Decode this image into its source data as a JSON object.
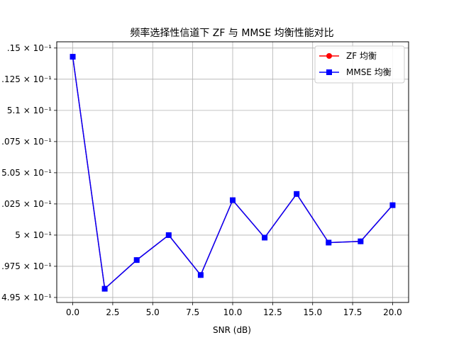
{
  "chart_data": {
    "type": "line",
    "title": "频率选择性信道下 ZF 与 MMSE 均衡性能对比",
    "xlabel": "SNR (dB)",
    "ylabel": "",
    "x": [
      0,
      2,
      4,
      6,
      8,
      10,
      12,
      14,
      16,
      18,
      20
    ],
    "xlim": [
      -1,
      21
    ],
    "ylim": [
      0.4946,
      0.5155
    ],
    "xticks": [
      0,
      2.5,
      5,
      7.5,
      10,
      12.5,
      15,
      17.5,
      20
    ],
    "xtick_labels": [
      "0.0",
      "2.5",
      "5.0",
      "7.5",
      "10.0",
      "12.5",
      "15.0",
      "17.5",
      "20.0"
    ],
    "yticks": [
      0.495,
      0.4975,
      0.5,
      0.5025,
      0.505,
      0.5075,
      0.51,
      0.5125,
      0.515
    ],
    "ytick_labels": [
      "4.95 × 10⁻¹",
      ".975 × 10⁻¹",
      "5 × 10⁻¹",
      ".025 × 10⁻¹",
      "5.05 × 10⁻¹",
      ".075 × 10⁻¹",
      "5.1 × 10⁻¹",
      ".125 × 10⁻¹",
      ".15 × 10⁻¹"
    ],
    "grid": true,
    "legend_position": "top-right",
    "series": [
      {
        "name": "ZF 均衡",
        "color": "#ff0000",
        "marker": "circle",
        "values": [
          0.5143,
          0.4957,
          0.498,
          0.5,
          0.4968,
          0.5028,
          0.4998,
          0.5033,
          0.4994,
          0.4995,
          0.5024
        ]
      },
      {
        "name": "MMSE 均衡",
        "color": "#0000ff",
        "marker": "square",
        "values": [
          0.5143,
          0.4957,
          0.498,
          0.5,
          0.4968,
          0.5028,
          0.4998,
          0.5033,
          0.4994,
          0.4995,
          0.5024
        ]
      }
    ]
  }
}
